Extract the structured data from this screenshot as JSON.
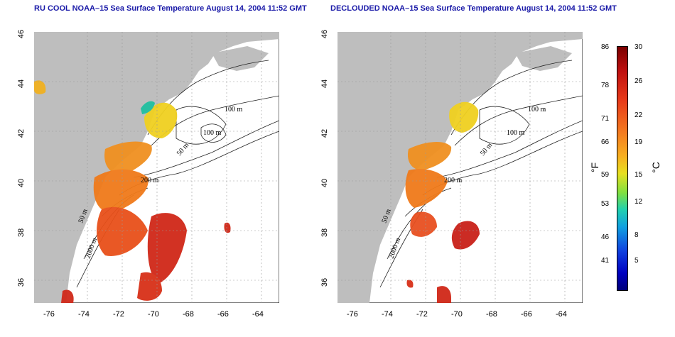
{
  "titles": {
    "left": "RU COOL NOAA–15 Sea Surface Temperature August 14, 2004 11:52 GMT",
    "right": "DECLOUDED NOAA–15 Sea Surface Temperature August 14, 2004 11:52 GMT"
  },
  "axes": {
    "longitude_ticks": [
      "-76",
      "-74",
      "-72",
      "-70",
      "-68",
      "-66",
      "-64"
    ],
    "latitude_ticks": [
      "46",
      "44",
      "42",
      "40",
      "38",
      "36"
    ]
  },
  "contour_labels": [
    "100 m",
    "100 m",
    "50 m",
    "200 m",
    "50 m",
    "2000 m"
  ],
  "colorbar": {
    "fahrenheit_label": "°F",
    "celsius_label": "°C",
    "fahrenheit_ticks": [
      "86",
      "78",
      "71",
      "66",
      "59",
      "53",
      "46",
      "41"
    ],
    "celsius_ticks": [
      "30",
      "26",
      "22",
      "19",
      "15",
      "12",
      "8",
      "5"
    ]
  },
  "colors": {
    "land": "#bebebe",
    "ocean": "#ffffff",
    "warm": "#d02818",
    "mid": "#f07a1a",
    "cool": "#f0d020",
    "title": "#1a1aa8"
  }
}
